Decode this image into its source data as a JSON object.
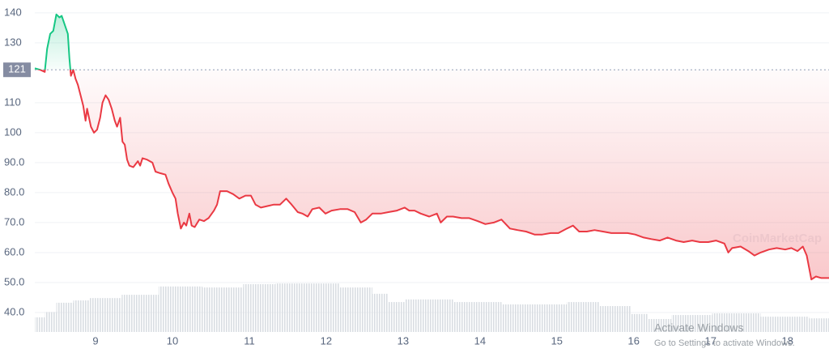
{
  "chart_data": {
    "type": "line",
    "xlim": [
      8.21,
      18.54
    ],
    "xticks": [
      9,
      10,
      11,
      12,
      13,
      14,
      15,
      16,
      17,
      18
    ],
    "ylim": [
      33.5,
      144.3
    ],
    "yticks": [
      140,
      130,
      110,
      100,
      {
        "value": 90,
        "label": "90.0"
      },
      {
        "value": 80,
        "label": "80.0"
      },
      {
        "value": 70,
        "label": "70.0"
      },
      {
        "value": 60,
        "label": "60.0"
      },
      {
        "value": 50,
        "label": "50.0"
      },
      {
        "value": 40,
        "label": "40.0"
      }
    ],
    "grid": true,
    "baseline": 121,
    "up_color": "#16c784",
    "down_color": "#ea3943",
    "watermark": "CoinMarketCap",
    "x": [
      8.21,
      8.28,
      8.34,
      8.37,
      8.41,
      8.45,
      8.49,
      8.53,
      8.56,
      8.6,
      8.64,
      8.66,
      8.68,
      8.71,
      8.74,
      8.77,
      8.81,
      8.84,
      8.87,
      8.89,
      8.94,
      8.98,
      9.02,
      9.06,
      9.09,
      9.13,
      9.17,
      9.21,
      9.25,
      9.28,
      9.32,
      9.35,
      9.38,
      9.41,
      9.44,
      9.49,
      9.55,
      9.58,
      9.61,
      9.67,
      9.74,
      9.78,
      9.84,
      9.91,
      9.95,
      10.0,
      10.04,
      10.07,
      10.11,
      10.15,
      10.18,
      10.22,
      10.25,
      10.29,
      10.35,
      10.41,
      10.47,
      10.54,
      10.58,
      10.62,
      10.71,
      10.79,
      10.87,
      10.95,
      11.02,
      11.08,
      11.15,
      11.23,
      11.32,
      11.4,
      11.48,
      11.55,
      11.63,
      11.69,
      11.76,
      11.82,
      11.91,
      11.99,
      12.07,
      12.18,
      12.28,
      12.37,
      12.45,
      12.52,
      12.6,
      12.71,
      12.81,
      12.92,
      13.02,
      13.08,
      13.15,
      13.23,
      13.34,
      13.44,
      13.49,
      13.57,
      13.65,
      13.76,
      13.86,
      13.97,
      14.07,
      14.18,
      14.28,
      14.39,
      14.49,
      14.6,
      14.71,
      14.81,
      14.92,
      15.02,
      15.13,
      15.21,
      15.29,
      15.39,
      15.49,
      15.6,
      15.71,
      15.81,
      15.92,
      16.02,
      16.13,
      16.23,
      16.34,
      16.44,
      16.55,
      16.65,
      16.76,
      16.86,
      16.97,
      17.07,
      17.18,
      17.23,
      17.28,
      17.39,
      17.49,
      17.57,
      17.65,
      17.76,
      17.86,
      17.97,
      18.05,
      18.13,
      18.2,
      18.25,
      18.31,
      18.37,
      18.44,
      18.54
    ],
    "values": [
      121.5,
      121,
      120.3,
      128,
      133,
      134,
      139.5,
      138.5,
      139,
      136,
      133,
      125,
      119,
      121,
      118,
      116,
      112,
      109,
      104,
      108,
      102,
      100,
      101,
      105,
      110,
      112.5,
      111,
      108,
      104,
      102,
      105,
      97,
      96,
      91,
      89,
      88.5,
      90.5,
      89,
      91.5,
      91,
      90,
      87,
      86.5,
      86,
      83,
      80,
      78,
      73,
      68,
      70,
      69,
      73,
      69,
      68.5,
      71,
      70.5,
      71.5,
      74,
      76,
      80.5,
      80.5,
      79.5,
      78,
      79,
      79,
      76,
      75,
      75.5,
      76,
      76,
      78,
      76,
      73.5,
      73,
      72,
      74.5,
      75,
      73,
      74,
      74.5,
      74.5,
      73.5,
      70,
      71,
      73,
      73,
      73.5,
      74,
      75,
      74,
      74,
      73,
      72,
      73,
      70,
      72,
      72,
      71.5,
      71.5,
      70.5,
      69.5,
      70,
      71,
      68,
      67.5,
      67,
      66,
      66,
      66.5,
      66.5,
      68,
      69,
      67,
      67,
      67.5,
      67,
      66.5,
      66.5,
      66.5,
      66,
      65,
      64.5,
      64,
      65,
      64,
      63.5,
      64,
      63.5,
      63.5,
      64,
      63,
      60,
      61.5,
      62,
      60.5,
      59,
      60,
      61,
      61.5,
      61,
      61.5,
      60.5,
      62,
      59,
      51,
      52,
      51.5,
      51.5
    ],
    "volume": {
      "y2lim": [
        0,
        100
      ],
      "x": [
        8.21,
        8.34,
        8.49,
        8.71,
        8.92,
        9.34,
        9.82,
        10.39,
        10.92,
        11.34,
        11.76,
        12.18,
        12.6,
        12.81,
        13.02,
        13.65,
        14.28,
        15.13,
        15.55,
        15.97,
        16.18,
        16.49,
        17.02,
        17.65,
        18.28
      ],
      "values": [
        4.4,
        6,
        8.8,
        9.5,
        10.2,
        11.2,
        13.7,
        13.4,
        14.4,
        14.6,
        14.6,
        13.4,
        11.5,
        9,
        9.8,
        9,
        8.3,
        9,
        7.8,
        5.4,
        3.9,
        5.1,
        5.6,
        4.6,
        4.1
      ]
    }
  },
  "os_overlay": {
    "title": "Activate Windows",
    "subtitle": "Go to Settings to activate Windows."
  }
}
